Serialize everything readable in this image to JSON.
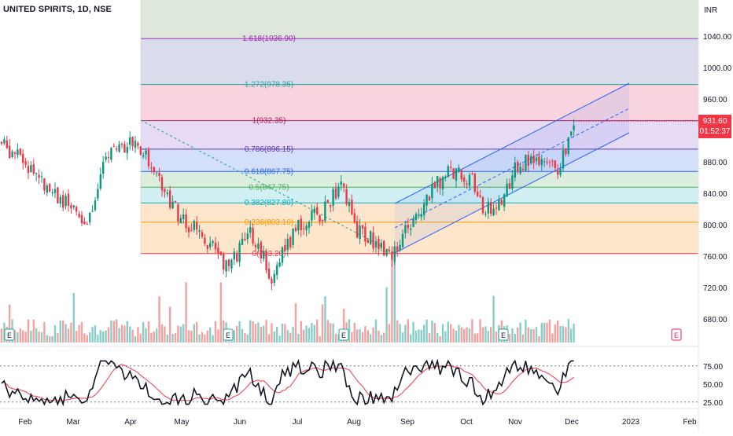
{
  "header": {
    "title": "UNITED SPIRITS, 1D, NSE"
  },
  "price_axis": {
    "currency": "INR",
    "ticks": [
      "1040.00",
      "1000.00",
      "960.00",
      "920.00",
      "880.00",
      "840.00",
      "800.00",
      "760.00",
      "720.00",
      "680.00"
    ],
    "last_price": "931.60",
    "countdown": "01:52:37"
  },
  "time_axis": {
    "labels": [
      "Feb",
      "Mar",
      "Apr",
      "May",
      "Jun",
      "Jul",
      "Aug",
      "Sep",
      "Oct",
      "Nov",
      "Dec",
      "2023",
      "Feb"
    ]
  },
  "fib_levels": [
    {
      "label": "1.618(1036.90)",
      "value": 1036.9,
      "color": "#9c27b0",
      "fill": "#d9e6d6"
    },
    {
      "label": "1.272(978.35)",
      "value": 978.35,
      "color": "#26a69a",
      "fill": "#d6d7e9"
    },
    {
      "label": "1(932.35)",
      "value": 932.35,
      "color": "#b71c5c",
      "fill": "#f7cfdc"
    },
    {
      "label": "0.786(896.15)",
      "value": 896.15,
      "color": "#5e35b1",
      "fill": "#e3d6f3"
    },
    {
      "label": "0.618(867.75)",
      "value": 867.75,
      "color": "#2962ff",
      "fill": "#cfdcf8"
    },
    {
      "label": "0.5(847.75)",
      "value": 847.75,
      "color": "#4caf50",
      "fill": "#d7ebd8"
    },
    {
      "label": "0.382(827.80)",
      "value": 827.8,
      "color": "#00acc1",
      "fill": "#cdeef3"
    },
    {
      "label": "0.236(803.10)",
      "value": 803.1,
      "color": "#ff9800",
      "fill": "#fde3c6"
    },
    {
      "label": "0(763.20)",
      "value": 763.2,
      "color": "#f23645",
      "fill": ""
    }
  ],
  "rsi_axis": {
    "ticks": [
      "75.00",
      "50.00",
      "25.00"
    ]
  },
  "earnings_marker": "E",
  "colors": {
    "up": "#089981",
    "down": "#f23645",
    "channel": "#2962ff",
    "rsi_line": "#131722",
    "rsi_ma": "#f23645",
    "vol_up": "#26a69a",
    "vol_down": "#ef5350"
  },
  "chart_data": {
    "type": "candlestick",
    "title": "UNITED SPIRITS, 1D, NSE",
    "y_unit": "INR",
    "ylim": [
      700,
      1060
    ],
    "x_range": [
      "Jan 2022",
      "Feb 2023"
    ],
    "fibonacci": {
      "from": 763.2,
      "to": 932.35,
      "levels": [
        0,
        0.236,
        0.382,
        0.5,
        0.618,
        0.786,
        1,
        1.272,
        1.618
      ],
      "prices": [
        763.2,
        803.1,
        827.8,
        847.75,
        867.75,
        896.15,
        932.35,
        978.35,
        1036.9
      ]
    },
    "channel": {
      "lower_start": [
        "Aug",
        763
      ],
      "upper_end": [
        "Dec",
        978
      ]
    },
    "monthly_closes": [
      {
        "month": "Jan",
        "close": 900
      },
      {
        "month": "Feb",
        "close": 860
      },
      {
        "month": "Mar",
        "close": 840
      },
      {
        "month": "Apr",
        "close": 890
      },
      {
        "month": "May",
        "close": 800
      },
      {
        "month": "Jun",
        "close": 760
      },
      {
        "month": "Jul",
        "close": 815
      },
      {
        "month": "Aug",
        "close": 790
      },
      {
        "month": "Sep",
        "close": 865
      },
      {
        "month": "Oct",
        "close": 825
      },
      {
        "month": "Nov",
        "close": 885
      },
      {
        "month": "Dec",
        "close": 931.6
      }
    ],
    "last_close": 931.6,
    "rsi": {
      "ylim": [
        15,
        90
      ],
      "ticks": [
        75,
        50,
        25
      ],
      "last": 78
    }
  }
}
